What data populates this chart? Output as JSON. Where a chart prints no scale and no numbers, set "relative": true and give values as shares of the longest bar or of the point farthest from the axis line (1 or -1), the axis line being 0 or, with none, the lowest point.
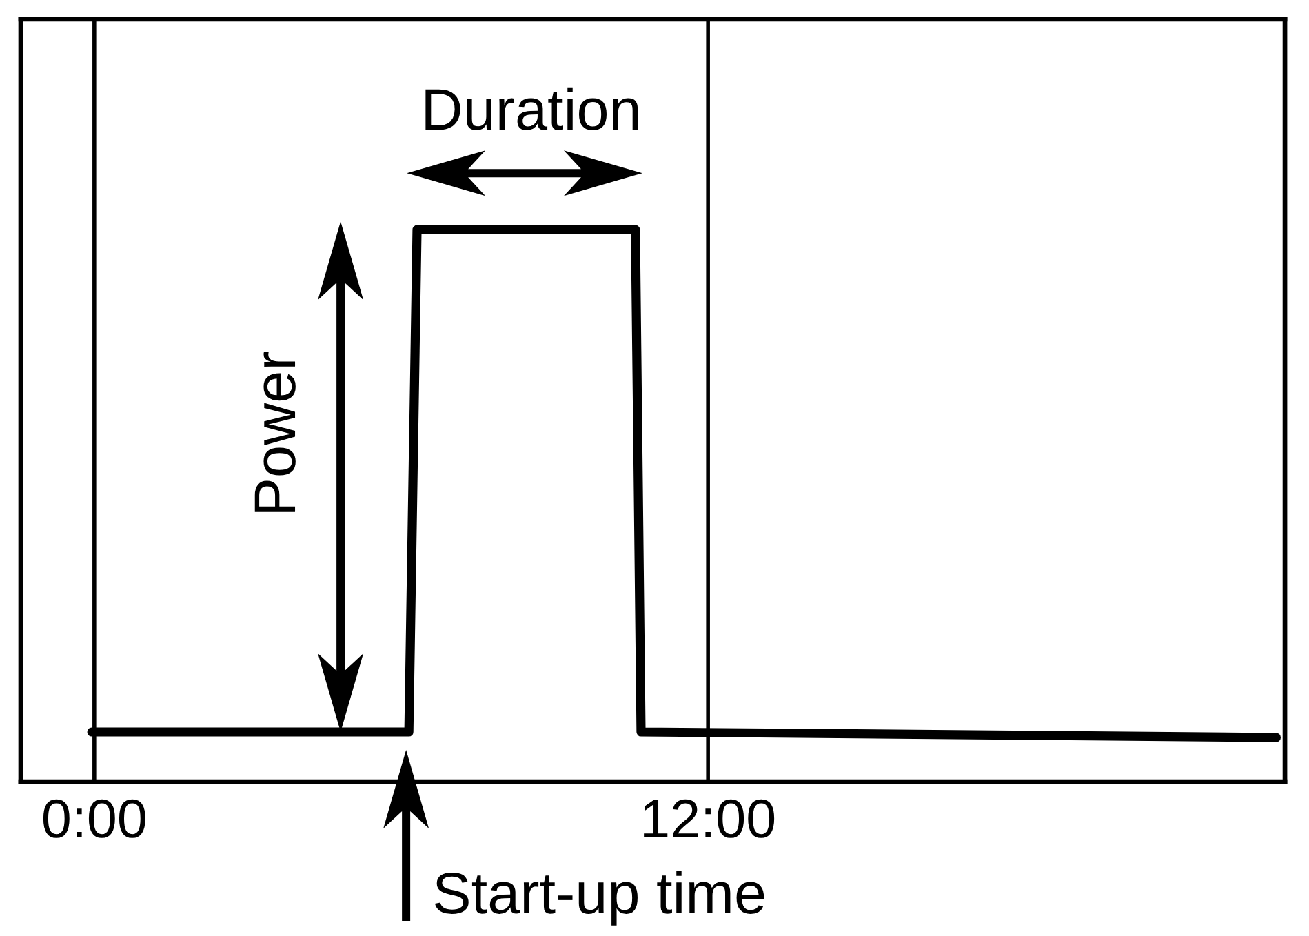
{
  "chart_data": {
    "type": "line",
    "relative": true,
    "x": [
      -0.05,
      6.15,
      6.31,
      10.58,
      10.69,
      23.11
    ],
    "values": [
      0.09,
      0.09,
      1,
      1,
      0.09,
      0.08
    ],
    "color": "#000000",
    "xlim": [
      -1.44,
      23.28
    ],
    "xticks": [
      {
        "value": 0,
        "label": "0:00"
      },
      {
        "value": 12,
        "label": "12:00"
      }
    ],
    "grid": "x",
    "annotations": [
      "Duration",
      "Power",
      "Start-up time"
    ]
  }
}
